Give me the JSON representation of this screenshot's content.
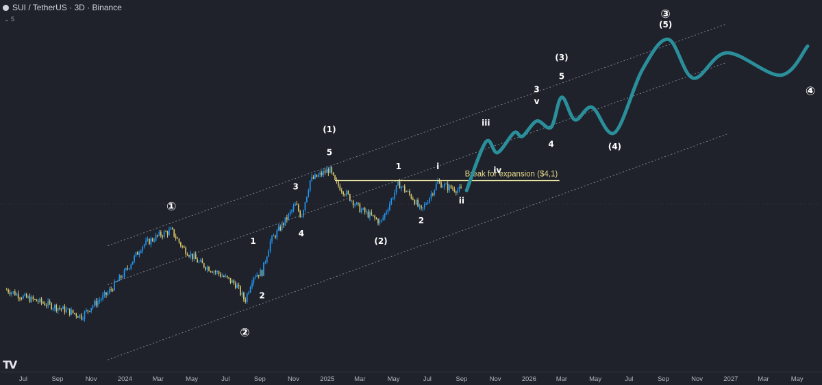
{
  "header": {
    "title": "SUI / TetherUS · 3D · Binance",
    "sub_value": "5"
  },
  "watermark": "TV",
  "colors": {
    "background": "#1f222b",
    "bull_candle": "#2196f3",
    "bear_candle": "#d6c56a",
    "projection": "#2a8f9b",
    "channel": "#9aa0ab",
    "breakout_line": "#e8e4a0",
    "label": "#ffffff"
  },
  "chart_data": {
    "type": "candlestick",
    "x_axis": {
      "ticks": [
        "Jul",
        "Sep",
        "Nov",
        "2024",
        "Mar",
        "May",
        "Jul",
        "Sep",
        "Nov",
        "2025",
        "Mar",
        "May",
        "Jul",
        "Sep",
        "Nov",
        "2026",
        "Mar",
        "May",
        "Jul",
        "Sep",
        "Nov",
        "2027",
        "Mar",
        "May"
      ]
    },
    "price_path_candles": [
      [
        "2023-06-01",
        0.72
      ],
      [
        "2023-07-01",
        0.64
      ],
      [
        "2023-08-01",
        0.59
      ],
      [
        "2023-09-15",
        0.52
      ],
      [
        "2023-10-15",
        0.47
      ],
      [
        "2023-11-01",
        0.55
      ],
      [
        "2023-12-01",
        0.68
      ],
      [
        "2024-01-01",
        0.95
      ],
      [
        "2024-02-01",
        1.45
      ],
      [
        "2024-03-01",
        1.7
      ],
      [
        "2024-03-25",
        1.85
      ],
      [
        "2024-04-15",
        1.4
      ],
      [
        "2024-05-15",
        1.1
      ],
      [
        "2024-06-15",
        0.95
      ],
      [
        "2024-07-20",
        0.78
      ],
      [
        "2024-08-05",
        0.6
      ],
      [
        "2024-08-20",
        0.9
      ],
      [
        "2024-09-05",
        0.95
      ],
      [
        "2024-09-20",
        1.55
      ],
      [
        "2024-10-15",
        2.1
      ],
      [
        "2024-11-05",
        2.8
      ],
      [
        "2024-11-15",
        2.3
      ],
      [
        "2024-12-01",
        4.1
      ],
      [
        "2025-01-05",
        4.9
      ],
      [
        "2025-01-15",
        4.0
      ],
      [
        "2025-02-05",
        3.3
      ],
      [
        "2025-03-01",
        2.6
      ],
      [
        "2025-04-08",
        2.1
      ],
      [
        "2025-05-10",
        3.9
      ],
      [
        "2025-06-05",
        3.1
      ],
      [
        "2025-06-20",
        2.5
      ],
      [
        "2025-07-20",
        4.0
      ],
      [
        "2025-08-05",
        3.7
      ],
      [
        "2025-09-01",
        3.5
      ]
    ],
    "projection": [
      [
        "2025-09-10",
        3.5
      ],
      [
        "2025-10-15",
        7.6
      ],
      [
        "2025-11-05",
        6.4
      ],
      [
        "2025-12-05",
        8.8
      ],
      [
        "2025-12-20",
        8.3
      ],
      [
        "2026-01-15",
        10.6
      ],
      [
        "2026-02-10",
        9.6
      ],
      [
        "2026-03-01",
        15.5
      ],
      [
        "2026-03-25",
        10.8
      ],
      [
        "2026-04-25",
        13.2
      ],
      [
        "2026-06-05",
        8.8
      ],
      [
        "2026-07-25",
        24
      ],
      [
        "2026-09-10",
        39
      ],
      [
        "2026-10-25",
        21
      ],
      [
        "2026-12-25",
        31.5
      ],
      [
        "2027-04-01",
        22
      ],
      [
        "2027-05-20",
        35
      ]
    ],
    "breakout": {
      "label": "Break for expansion ($4,1)",
      "price": 4.1,
      "from": "2025-01-15",
      "to": "2026-02-25"
    },
    "wave_labels": [
      {
        "text": "①",
        "t": "2024-03-25",
        "p": 2.7
      },
      {
        "text": "②",
        "t": "2024-08-05",
        "p": 0.36
      },
      {
        "text": "③",
        "t": "2026-09-05",
        "p": 58
      },
      {
        "text": "④",
        "t": "2027-05-25",
        "p": 17
      },
      {
        "text": "1",
        "t": "2024-08-20",
        "p": 1.55
      },
      {
        "text": "2",
        "t": "2024-09-05",
        "p": 0.65
      },
      {
        "text": "3",
        "t": "2024-11-05",
        "p": 3.7
      },
      {
        "text": "4",
        "t": "2024-11-15",
        "p": 1.75
      },
      {
        "text": "5",
        "t": "2025-01-05",
        "p": 6.4
      },
      {
        "text": "(1)",
        "t": "2025-01-05",
        "p": 9.2
      },
      {
        "text": "(2)",
        "t": "2025-04-08",
        "p": 1.55
      },
      {
        "text": "1",
        "t": "2025-05-10",
        "p": 5.1
      },
      {
        "text": "2",
        "t": "2025-06-20",
        "p": 2.15
      },
      {
        "text": "i",
        "t": "2025-07-20",
        "p": 5.1
      },
      {
        "text": "ii",
        "t": "2025-09-01",
        "p": 2.95
      },
      {
        "text": "iii",
        "t": "2025-10-15",
        "p": 10.2
      },
      {
        "text": "iv",
        "t": "2025-11-05",
        "p": 4.8
      },
      {
        "text": "v",
        "t": "2026-01-15",
        "p": 14.4
      },
      {
        "text": "3",
        "t": "2026-01-15",
        "p": 17.5
      },
      {
        "text": "4",
        "t": "2026-02-10",
        "p": 7.3
      },
      {
        "text": "5",
        "t": "2026-03-01",
        "p": 21.5
      },
      {
        "text": "(3)",
        "t": "2026-03-01",
        "p": 29
      },
      {
        "text": "(4)",
        "t": "2026-06-05",
        "p": 7.0
      },
      {
        "text": "(5)",
        "t": "2026-09-05",
        "p": 49
      }
    ],
    "channel_lines": [
      {
        "name": "upper",
        "from": [
          "2023-12-01",
          1.45
        ],
        "to": [
          "2026-12-25",
          50
        ]
      },
      {
        "name": "middle",
        "from": [
          "2023-12-01",
          0.78
        ],
        "to": [
          "2026-12-25",
          27
        ]
      },
      {
        "name": "lower",
        "from": [
          "2023-12-01",
          0.235
        ],
        "to": [
          "2026-12-25",
          8.6
        ]
      }
    ],
    "y_scale": "log",
    "y_range": [
      0.2,
      60
    ],
    "x_range": [
      "2023-05-20",
      "2027-06-15"
    ]
  }
}
